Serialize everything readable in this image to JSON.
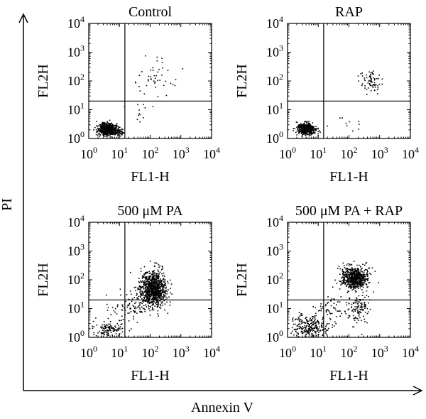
{
  "figure": {
    "y_axis_label": "PI",
    "x_axis_label": "Annexin V"
  },
  "chart_data": [
    {
      "type": "scatter",
      "title": "Control",
      "xlabel": "FL1-H",
      "ylabel": "FL2H",
      "xscale": "log",
      "yscale": "log",
      "xlim": [
        1,
        10000
      ],
      "ylim": [
        1,
        10000
      ],
      "xticks": [
        1,
        10,
        100,
        1000,
        10000
      ],
      "yticks": [
        1,
        10,
        100,
        1000,
        10000
      ],
      "quadrant_gate": {
        "x": 15,
        "y": 20
      },
      "populations": [
        {
          "center": [
            4,
            2.2
          ],
          "spread": [
            0.14,
            0.1
          ],
          "count": 650
        },
        {
          "center": [
            9,
            1.8
          ],
          "spread": [
            0.09,
            0.08
          ],
          "count": 70
        },
        {
          "center": [
            140,
            150
          ],
          "spread": [
            0.32,
            0.32
          ],
          "count": 45
        },
        {
          "center": [
            40,
            8
          ],
          "spread": [
            0.25,
            0.25
          ],
          "count": 12
        }
      ]
    },
    {
      "type": "scatter",
      "title": "RAP",
      "xlabel": "FL1-H",
      "ylabel": "FL2H",
      "xscale": "log",
      "yscale": "log",
      "xlim": [
        1,
        10000
      ],
      "ylim": [
        1,
        10000
      ],
      "xticks": [
        1,
        10,
        100,
        1000,
        10000
      ],
      "yticks": [
        1,
        10,
        100,
        1000,
        10000
      ],
      "quadrant_gate": {
        "x": 15,
        "y": 20
      },
      "populations": [
        {
          "center": [
            4,
            2.2
          ],
          "spread": [
            0.13,
            0.09
          ],
          "count": 650
        },
        {
          "center": [
            500,
            100
          ],
          "spread": [
            0.18,
            0.18
          ],
          "count": 70
        },
        {
          "center": [
            100,
            3
          ],
          "spread": [
            0.3,
            0.2
          ],
          "count": 10
        }
      ]
    },
    {
      "type": "scatter",
      "title": "500 μM PA",
      "xlabel": "FL1-H",
      "ylabel": "FL2H",
      "xscale": "log",
      "yscale": "log",
      "xlim": [
        1,
        10000
      ],
      "ylim": [
        1,
        10000
      ],
      "xticks": [
        1,
        10,
        100,
        1000,
        10000
      ],
      "yticks": [
        1,
        10,
        100,
        1000,
        10000
      ],
      "quadrant_gate": {
        "x": 15,
        "y": 20
      },
      "populations": [
        {
          "center": [
            120,
            50
          ],
          "spread": [
            0.22,
            0.32
          ],
          "count": 900
        },
        {
          "center": [
            4,
            2
          ],
          "spread": [
            0.25,
            0.15
          ],
          "count": 120
        },
        {
          "center": [
            20,
            10
          ],
          "spread": [
            0.3,
            0.3
          ],
          "count": 80
        }
      ]
    },
    {
      "type": "scatter",
      "title": "500 μM PA + RAP",
      "xlabel": "FL1-H",
      "ylabel": "FL2H",
      "xscale": "log",
      "yscale": "log",
      "xlim": [
        1,
        10000
      ],
      "ylim": [
        1,
        10000
      ],
      "xticks": [
        1,
        10,
        100,
        1000,
        10000
      ],
      "yticks": [
        1,
        10,
        100,
        1000,
        10000
      ],
      "quadrant_gate": {
        "x": 15,
        "y": 20
      },
      "populations": [
        {
          "center": [
            150,
            120
          ],
          "spread": [
            0.2,
            0.2
          ],
          "count": 650
        },
        {
          "center": [
            5,
            2.5
          ],
          "spread": [
            0.3,
            0.2
          ],
          "count": 250
        },
        {
          "center": [
            200,
            10
          ],
          "spread": [
            0.2,
            0.3
          ],
          "count": 120
        },
        {
          "center": [
            30,
            10
          ],
          "spread": [
            0.25,
            0.25
          ],
          "count": 60
        }
      ]
    }
  ]
}
